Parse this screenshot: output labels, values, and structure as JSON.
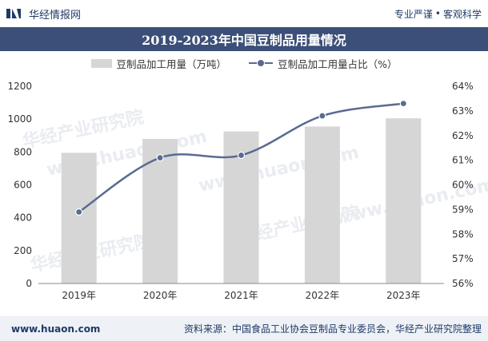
{
  "header": {
    "brand": "华经情报网",
    "slogan_left": "专业严谨",
    "slogan_sep": "•",
    "slogan_right": "客观科学"
  },
  "footer": {
    "website": "www.huaon.com",
    "source": "资料来源：中国食品工业协会豆制品专业委员会，华经产业研究院整理"
  },
  "watermarks": [
    "华经产业研究院",
    "www.huaon.com"
  ],
  "colors": {
    "bar": "#d6d6d6",
    "line": "#5a6b91",
    "title_bg": "#3c4f78"
  },
  "chart_data": {
    "type": "bar+line",
    "title": "2019-2023年中国豆制品用量情况",
    "categories": [
      "2019年",
      "2020年",
      "2021年",
      "2022年",
      "2023年"
    ],
    "series": [
      {
        "name": "豆制品加工用量（万吨）",
        "type": "bar",
        "axis": "left",
        "values": [
          795,
          880,
          925,
          955,
          1005
        ]
      },
      {
        "name": "豆制品加工用量占比（%）",
        "type": "line",
        "axis": "right",
        "values": [
          58.9,
          61.1,
          61.2,
          62.8,
          63.3
        ]
      }
    ],
    "y_left": {
      "min": 0,
      "max": 1200,
      "ticks": [
        0,
        200,
        400,
        600,
        800,
        1000,
        1200
      ]
    },
    "y_right": {
      "min": 56,
      "max": 64,
      "ticks": [
        "56%",
        "57%",
        "58%",
        "59%",
        "60%",
        "61%",
        "62%",
        "63%",
        "64%"
      ]
    },
    "grid": false,
    "legend_position": "top-center"
  }
}
